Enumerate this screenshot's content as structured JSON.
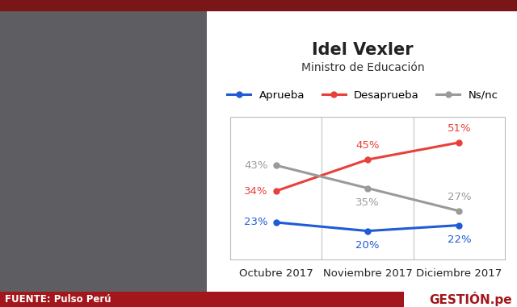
{
  "chart_data": {
    "type": "line",
    "title": "Idel Vexler",
    "subtitle": "Ministro de Educación",
    "categories": [
      "Octubre 2017",
      "Noviembre 2017",
      "Diciembre 2017"
    ],
    "series": [
      {
        "name": "Aprueba",
        "color": "#1f5bd6",
        "marker": "circle",
        "values": [
          23,
          20,
          22
        ],
        "value_labels": [
          "23%",
          "20%",
          "22%"
        ]
      },
      {
        "name": "Desaprueba",
        "color": "#e8403a",
        "marker": "circle",
        "values": [
          34,
          45,
          51
        ],
        "value_labels": [
          "34%",
          "45%",
          "51%"
        ]
      },
      {
        "name": "Ns/nc",
        "color": "#9a9a9a",
        "marker": "circle",
        "values": [
          43,
          35,
          27
        ],
        "value_labels": [
          "43%",
          "35%",
          "27%"
        ]
      }
    ],
    "ylim": [
      10,
      60
    ],
    "legend": "upper center",
    "data_labels": true,
    "tick_labels": "x",
    "source": "FUENTE: Pulso Perú",
    "logo": "GESTIÓN.pe"
  }
}
